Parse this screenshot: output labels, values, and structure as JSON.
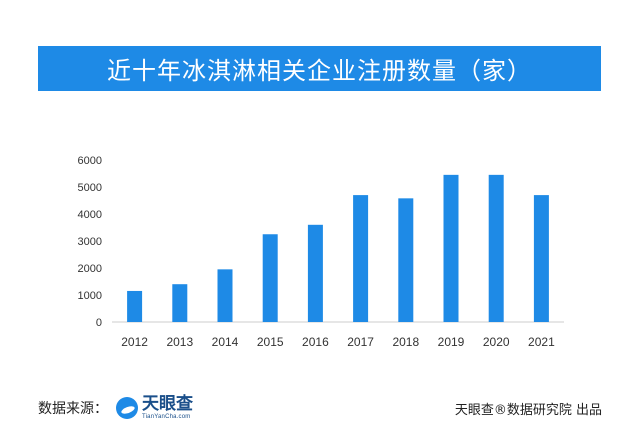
{
  "title": "近十年冰淇淋相关企业注册数量（家）",
  "footer": {
    "source_label": "数据来源：",
    "logo_text": "天眼查",
    "logo_subtext": "TianYanCha.com",
    "credit": "天眼查®数据研究院 出品"
  },
  "colors": {
    "banner": "#1e8ae6",
    "bar": "#1e8ae6"
  },
  "chart_data": {
    "type": "bar",
    "title": "近十年冰淇淋相关企业注册数量（家）",
    "categories": [
      "2012",
      "2013",
      "2014",
      "2015",
      "2016",
      "2017",
      "2018",
      "2019",
      "2020",
      "2021"
    ],
    "values": [
      1150,
      1400,
      1950,
      3250,
      3600,
      4700,
      4580,
      5450,
      5450,
      4700
    ],
    "xlabel": "",
    "ylabel": "",
    "ylim": [
      0,
      6000
    ],
    "yticks": [
      "0",
      "1000",
      "2000",
      "3000",
      "4000",
      "5000",
      "6000"
    ],
    "grid": false,
    "legend": "none"
  }
}
